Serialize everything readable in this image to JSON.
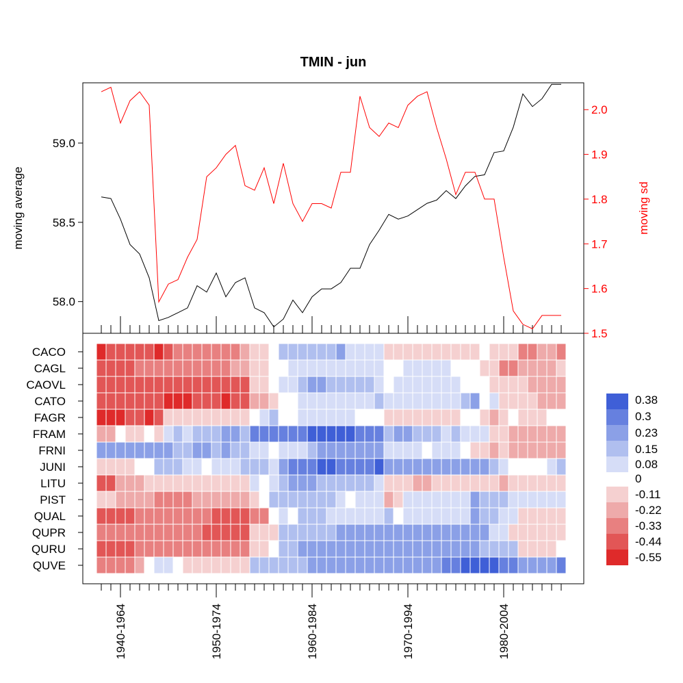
{
  "chart_data": {
    "type": "line+heatmap",
    "title": "TMIN - jun",
    "top_panel": {
      "type": "line",
      "ylabel_left": "moving average",
      "ylabel_right": "moving sd",
      "left_axis": {
        "ticks": [
          58.0,
          58.5,
          59.0
        ],
        "tick_labels": [
          "58.0",
          "58.5",
          "59.0"
        ],
        "range": [
          57.8,
          59.38
        ]
      },
      "right_axis": {
        "ticks": [
          1.5,
          1.6,
          1.7,
          1.8,
          1.9,
          2.0
        ],
        "tick_labels": [
          "1.5",
          "1.6",
          "1.7",
          "1.8",
          "1.9",
          "2.0"
        ],
        "range": [
          1.5,
          2.06
        ]
      },
      "line_colors": {
        "moving_average": "#000000",
        "moving_sd": "#ff0000"
      },
      "moving_average": [
        58.66,
        58.65,
        58.52,
        58.36,
        58.3,
        58.15,
        57.88,
        57.9,
        57.93,
        57.96,
        58.1,
        58.06,
        58.18,
        58.03,
        58.12,
        58.15,
        57.96,
        57.93,
        57.84,
        57.89,
        58.01,
        57.93,
        58.03,
        58.08,
        58.08,
        58.12,
        58.21,
        58.21,
        58.36,
        58.45,
        58.55,
        58.52,
        58.54,
        58.58,
        58.62,
        58.64,
        58.7,
        58.65,
        58.73,
        58.79,
        58.8,
        58.94,
        58.95,
        59.1,
        59.31,
        59.23,
        59.28,
        59.37,
        59.37
      ],
      "moving_sd": [
        2.04,
        2.05,
        1.97,
        2.02,
        2.04,
        2.01,
        1.57,
        1.61,
        1.62,
        1.67,
        1.71,
        1.85,
        1.87,
        1.9,
        1.92,
        1.83,
        1.82,
        1.87,
        1.79,
        1.88,
        1.79,
        1.75,
        1.79,
        1.79,
        1.78,
        1.86,
        1.86,
        2.03,
        1.96,
        1.94,
        1.97,
        1.96,
        2.01,
        2.03,
        2.04,
        1.96,
        1.89,
        1.81,
        1.86,
        1.86,
        1.8,
        1.8,
        1.67,
        1.55,
        1.52,
        1.51,
        1.54,
        1.54,
        1.54
      ]
    },
    "heatmap": {
      "rows": [
        "CACO",
        "CAGL",
        "CAOVL",
        "CATO",
        "FAGR",
        "FRAM",
        "FRNI",
        "JUNI",
        "LITU",
        "PIST",
        "QUAL",
        "QUPR",
        "QURU",
        "QUVE"
      ],
      "x_tick_labels": [
        "1940-1964",
        "1950-1974",
        "1960-1984",
        "1970-1994",
        "1980-2004"
      ],
      "x_tick_label_indices": [
        2,
        12,
        22,
        32,
        42
      ],
      "n_columns": 49,
      "legend": {
        "labels": [
          "0.38",
          "0.3",
          "0.23",
          "0.15",
          "0.08",
          "0",
          "-0.11",
          "-0.22",
          "-0.33",
          "-0.44",
          "-0.55"
        ],
        "colors": [
          "#3f5fd7",
          "#6680df",
          "#8ba0e7",
          "#b0bfef",
          "#d6ddf7",
          "#ffffff",
          "#f5d0d0",
          "#eeaaaa",
          "#e88080",
          "#e25656",
          "#df2a2a"
        ]
      },
      "values": {
        "CACO": [
          -0.5,
          -0.47,
          -0.45,
          -0.44,
          -0.4,
          -0.42,
          -0.5,
          -0.4,
          -0.38,
          -0.38,
          -0.36,
          -0.36,
          -0.3,
          -0.3,
          -0.28,
          -0.27,
          -0.05,
          -0.05,
          0.0,
          0.18,
          0.12,
          0.12,
          0.15,
          0.15,
          0.16,
          0.19,
          0.05,
          0.05,
          0.1,
          0.08,
          -0.05,
          -0.05,
          -0.06,
          -0.06,
          -0.06,
          -0.06,
          -0.06,
          -0.06,
          -0.06,
          -0.05,
          0.0,
          -0.1,
          -0.12,
          -0.16,
          -0.32,
          -0.28,
          -0.26,
          -0.26,
          -0.28
        ],
        "CAGL": [
          -0.42,
          -0.42,
          -0.4,
          -0.4,
          -0.37,
          -0.37,
          -0.37,
          -0.35,
          -0.35,
          -0.33,
          -0.33,
          -0.3,
          -0.28,
          -0.28,
          -0.26,
          -0.26,
          -0.05,
          -0.05,
          -0.02,
          0.03,
          0.05,
          0.06,
          0.08,
          0.08,
          0.08,
          0.08,
          0.05,
          0.05,
          0.05,
          0.05,
          -0.02,
          0.0,
          0.08,
          0.05,
          0.05,
          0.08,
          0.08,
          0.03,
          0.0,
          0.0,
          -0.1,
          -0.16,
          -0.38,
          -0.38,
          -0.26,
          -0.22,
          -0.2,
          -0.18,
          -0.16
        ],
        "CAOVL": [
          -0.44,
          -0.42,
          -0.42,
          -0.42,
          -0.42,
          -0.42,
          -0.42,
          -0.42,
          -0.42,
          -0.4,
          -0.4,
          -0.4,
          -0.4,
          -0.4,
          -0.42,
          -0.42,
          -0.1,
          -0.08,
          -0.03,
          0.08,
          0.1,
          0.12,
          0.22,
          0.22,
          0.18,
          0.15,
          0.15,
          0.15,
          0.12,
          0.1,
          0.0,
          0.06,
          0.08,
          0.05,
          0.05,
          0.05,
          0.08,
          0.05,
          0.03,
          0.02,
          0.0,
          -0.05,
          -0.08,
          -0.1,
          -0.15,
          -0.18,
          -0.2,
          -0.2,
          -0.2
        ],
        "CATO": [
          -0.46,
          -0.46,
          -0.42,
          -0.42,
          -0.42,
          -0.46,
          -0.46,
          -0.5,
          -0.5,
          -0.5,
          -0.47,
          -0.47,
          -0.47,
          -0.53,
          -0.47,
          -0.44,
          -0.26,
          -0.26,
          -0.05,
          0.0,
          -0.02,
          0.1,
          0.08,
          0.1,
          0.08,
          0.06,
          0.05,
          0.08,
          0.1,
          0.12,
          0.06,
          0.06,
          0.06,
          0.06,
          0.06,
          0.06,
          0.06,
          0.06,
          0.15,
          0.22,
          0.0,
          0.06,
          -0.05,
          -0.12,
          -0.15,
          -0.15,
          -0.18,
          -0.2,
          -0.2
        ],
        "FAGR": [
          -0.55,
          -0.55,
          -0.52,
          -0.47,
          -0.47,
          -0.5,
          -0.42,
          -0.15,
          -0.15,
          -0.12,
          -0.12,
          -0.15,
          -0.12,
          -0.15,
          -0.12,
          -0.15,
          0.03,
          0.08,
          0.12,
          0.0,
          0.03,
          0.08,
          0.08,
          0.08,
          0.08,
          0.08,
          0.08,
          0.03,
          0.0,
          0.0,
          -0.15,
          -0.15,
          -0.12,
          -0.12,
          -0.12,
          -0.12,
          -0.1,
          -0.12,
          -0.03,
          -0.03,
          -0.1,
          -0.18,
          -0.15,
          0.03,
          -0.05,
          -0.05,
          -0.05,
          -0.03,
          -0.03
        ],
        "FRAM": [
          -0.25,
          -0.18,
          0.0,
          -0.05,
          -0.08,
          0.0,
          -0.05,
          0.05,
          0.15,
          0.05,
          0.15,
          0.18,
          0.18,
          0.2,
          0.2,
          0.18,
          0.3,
          0.3,
          0.3,
          0.3,
          0.32,
          0.32,
          0.38,
          0.38,
          0.36,
          0.36,
          0.34,
          0.32,
          0.32,
          0.3,
          0.18,
          0.2,
          0.2,
          0.18,
          0.18,
          0.15,
          0.1,
          0.18,
          0.08,
          0.05,
          0.05,
          -0.1,
          -0.15,
          -0.18,
          -0.22,
          -0.22,
          -0.22,
          -0.22,
          -0.25
        ],
        "FRNI": [
          0.22,
          0.22,
          0.22,
          0.22,
          0.22,
          0.22,
          0.2,
          0.2,
          0.16,
          0.12,
          0.2,
          0.2,
          0.15,
          0.2,
          0.18,
          0.15,
          0.1,
          0.1,
          0.0,
          0.05,
          0.08,
          0.08,
          0.15,
          0.2,
          0.2,
          0.24,
          0.26,
          0.26,
          0.26,
          0.24,
          0.08,
          0.1,
          0.1,
          0.05,
          0.0,
          0.1,
          0.08,
          0.05,
          0.0,
          -0.05,
          -0.1,
          -0.25,
          -0.15,
          -0.22,
          -0.22,
          -0.22,
          -0.22,
          -0.22,
          -0.22
        ],
        "JUNI": [
          -0.08,
          -0.08,
          -0.05,
          -0.05,
          0.03,
          0.0,
          0.15,
          0.15,
          0.12,
          0.08,
          0.06,
          0.03,
          0.08,
          0.05,
          0.1,
          0.12,
          0.15,
          0.12,
          0.1,
          0.24,
          0.28,
          0.3,
          0.32,
          0.36,
          0.34,
          0.32,
          0.3,
          0.32,
          0.33,
          0.34,
          0.26,
          0.26,
          0.26,
          0.22,
          0.22,
          0.2,
          0.22,
          0.2,
          0.24,
          0.26,
          0.2,
          0.15,
          0.08,
          0.0,
          0.03,
          -0.02,
          0.0,
          0.08,
          0.12
        ],
        "LITU": [
          -0.46,
          -0.42,
          -0.25,
          -0.25,
          -0.2,
          -0.15,
          -0.15,
          -0.12,
          -0.1,
          -0.1,
          -0.12,
          -0.12,
          -0.1,
          -0.15,
          -0.15,
          -0.12,
          0.05,
          0.03,
          0.08,
          0.15,
          0.2,
          0.2,
          0.2,
          0.18,
          0.18,
          0.18,
          0.16,
          0.14,
          0.12,
          0.08,
          -0.12,
          -0.12,
          -0.16,
          -0.18,
          -0.18,
          -0.16,
          -0.12,
          -0.1,
          -0.12,
          -0.14,
          -0.12,
          -0.16,
          -0.18,
          -0.15,
          -0.15,
          -0.15,
          -0.12,
          -0.12,
          -0.1
        ],
        "PIST": [
          -0.16,
          -0.16,
          -0.25,
          -0.25,
          -0.2,
          -0.25,
          -0.3,
          -0.28,
          -0.28,
          -0.28,
          -0.25,
          -0.25,
          -0.25,
          -0.25,
          -0.22,
          -0.22,
          -0.15,
          0.03,
          0.12,
          0.12,
          0.15,
          0.15,
          0.15,
          0.15,
          0.18,
          0.08,
          0.0,
          0.08,
          0.08,
          0.1,
          -0.22,
          -0.12,
          0.05,
          0.08,
          0.08,
          0.1,
          0.06,
          0.08,
          0.1,
          0.22,
          0.18,
          0.18,
          0.12,
          0.1,
          0.08,
          0.06,
          0.06,
          0.08,
          0.08
        ],
        "QUAL": [
          -0.44,
          -0.42,
          -0.42,
          -0.4,
          -0.38,
          -0.36,
          -0.36,
          -0.36,
          -0.36,
          -0.34,
          -0.34,
          -0.32,
          -0.44,
          -0.46,
          -0.44,
          -0.46,
          -0.3,
          -0.28,
          0.0,
          0.08,
          0.0,
          0.12,
          0.15,
          0.15,
          0.08,
          0.1,
          0.06,
          0.05,
          0.08,
          0.06,
          0.12,
          0.0,
          0.05,
          0.06,
          0.08,
          0.06,
          0.06,
          0.1,
          0.1,
          0.2,
          0.15,
          0.12,
          0.1,
          0.05,
          -0.1,
          -0.12,
          -0.15,
          -0.1,
          -0.08
        ],
        "QUPR": [
          -0.3,
          -0.3,
          -0.3,
          -0.3,
          -0.3,
          -0.3,
          -0.3,
          -0.3,
          -0.3,
          -0.3,
          -0.3,
          -0.4,
          -0.4,
          -0.4,
          -0.4,
          -0.4,
          -0.12,
          -0.12,
          -0.1,
          0.12,
          0.16,
          0.16,
          0.16,
          0.16,
          0.18,
          0.2,
          0.2,
          0.2,
          0.2,
          0.2,
          0.2,
          0.2,
          0.2,
          0.2,
          0.2,
          0.2,
          0.2,
          0.2,
          0.2,
          0.2,
          0.2,
          0.08,
          0.08,
          -0.05,
          -0.15,
          -0.15,
          -0.15,
          -0.1,
          -0.05
        ],
        "QURU": [
          -0.44,
          -0.44,
          -0.42,
          -0.42,
          -0.38,
          -0.38,
          -0.38,
          -0.38,
          -0.36,
          -0.36,
          -0.32,
          -0.32,
          -0.3,
          -0.3,
          -0.28,
          -0.28,
          -0.1,
          -0.05,
          0.03,
          0.15,
          0.18,
          0.2,
          0.22,
          0.22,
          0.22,
          0.22,
          0.22,
          0.22,
          0.22,
          0.22,
          0.22,
          0.22,
          0.22,
          0.22,
          0.22,
          0.22,
          0.22,
          0.22,
          0.22,
          0.22,
          0.18,
          0.18,
          0.15,
          0.12,
          -0.05,
          -0.05,
          -0.08,
          -0.05,
          0.0
        ],
        "QUVE": [
          -0.3,
          -0.3,
          -0.28,
          -0.28,
          -0.22,
          0.0,
          0.05,
          0.06,
          0.0,
          -0.05,
          -0.12,
          -0.12,
          -0.15,
          -0.15,
          -0.12,
          -0.15,
          0.12,
          0.16,
          0.16,
          0.16,
          0.18,
          0.16,
          0.2,
          0.22,
          0.24,
          0.24,
          0.24,
          0.24,
          0.24,
          0.24,
          0.24,
          0.24,
          0.24,
          0.24,
          0.24,
          0.26,
          0.28,
          0.3,
          0.38,
          0.36,
          0.34,
          0.34,
          0.32,
          0.3,
          0.26,
          0.26,
          0.24,
          0.24,
          0.3
        ]
      }
    }
  }
}
